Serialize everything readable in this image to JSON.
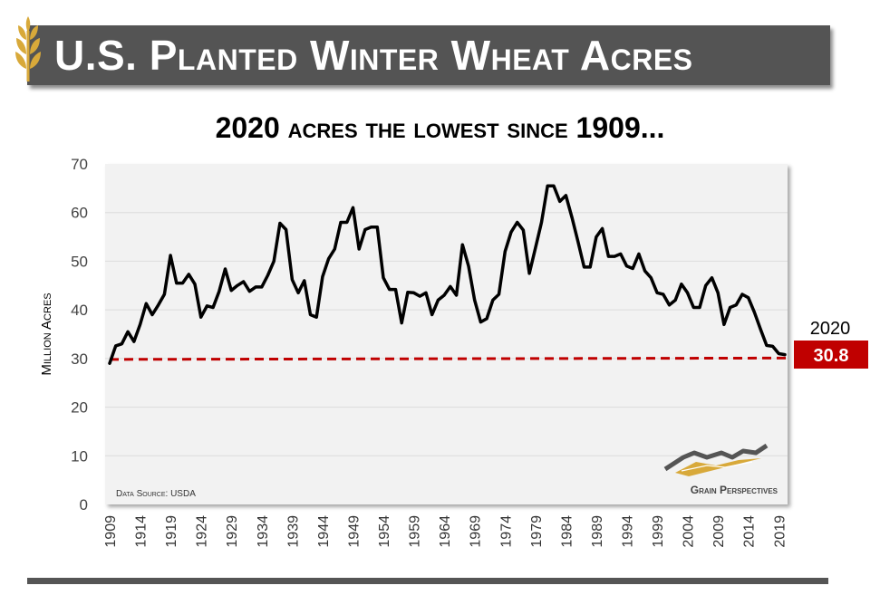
{
  "header": {
    "title": "U.S. Planted Winter Wheat Acres",
    "subtitle": "2020 acres the lowest since 1909..."
  },
  "colors": {
    "title_bg": "#545454",
    "plot_bg": "#f2f2f2",
    "line": "#000000",
    "reference": "#c00000",
    "callout_bg": "#c00000",
    "wheat_icon": "#d8a93a"
  },
  "chart_data": {
    "type": "line",
    "title": "2020 acres the lowest since 1909...",
    "xlabel": "",
    "ylabel": "Million Acres",
    "ylim": [
      0,
      70
    ],
    "yticks": [
      0,
      10,
      20,
      30,
      40,
      50,
      60,
      70
    ],
    "xlim": [
      1909,
      2020
    ],
    "xtick_labels": [
      "1909",
      "1914",
      "1919",
      "1924",
      "1929",
      "1934",
      "1939",
      "1944",
      "1949",
      "1954",
      "1959",
      "1964",
      "1969",
      "1974",
      "1979",
      "1984",
      "1989",
      "1994",
      "1999",
      "2004",
      "2009",
      "2014",
      "2019"
    ],
    "series": [
      {
        "name": "Planted Winter Wheat Acres",
        "x": [
          1909,
          1910,
          1911,
          1912,
          1913,
          1914,
          1915,
          1916,
          1917,
          1918,
          1919,
          1920,
          1921,
          1922,
          1923,
          1924,
          1925,
          1926,
          1927,
          1928,
          1929,
          1930,
          1931,
          1932,
          1933,
          1934,
          1935,
          1936,
          1937,
          1938,
          1939,
          1940,
          1941,
          1942,
          1943,
          1944,
          1945,
          1946,
          1947,
          1948,
          1949,
          1950,
          1951,
          1952,
          1953,
          1954,
          1955,
          1956,
          1957,
          1958,
          1959,
          1960,
          1961,
          1962,
          1963,
          1964,
          1965,
          1966,
          1967,
          1968,
          1969,
          1970,
          1971,
          1972,
          1973,
          1974,
          1975,
          1976,
          1977,
          1978,
          1979,
          1980,
          1981,
          1982,
          1983,
          1984,
          1985,
          1986,
          1987,
          1988,
          1989,
          1990,
          1991,
          1992,
          1993,
          1994,
          1995,
          1996,
          1997,
          1998,
          1999,
          2000,
          2001,
          2002,
          2003,
          2004,
          2005,
          2006,
          2007,
          2008,
          2009,
          2010,
          2011,
          2012,
          2013,
          2014,
          2015,
          2016,
          2017,
          2018,
          2019,
          2020
        ],
        "values": [
          29.0,
          32.6,
          33.0,
          35.5,
          33.5,
          37.0,
          41.3,
          39.0,
          41.0,
          43.2,
          51.2,
          45.5,
          45.5,
          47.3,
          45.3,
          38.5,
          40.8,
          40.5,
          43.8,
          48.4,
          44.0,
          45.0,
          45.8,
          43.8,
          44.7,
          44.7,
          47.1,
          50.0,
          57.8,
          56.5,
          46.2,
          43.5,
          46.0,
          39.0,
          38.5,
          46.8,
          50.5,
          52.5,
          58.0,
          58.0,
          61.0,
          52.5,
          56.5,
          57.0,
          57.0,
          46.6,
          44.2,
          44.2,
          37.3,
          43.6,
          43.5,
          42.8,
          43.5,
          39.0,
          42.0,
          43.0,
          44.8,
          43.0,
          53.4,
          49.0,
          42.0,
          37.5,
          38.2,
          42.0,
          43.2,
          52.0,
          56.0,
          58.0,
          56.4,
          47.5,
          52.7,
          58.0,
          65.5,
          65.5,
          62.3,
          63.5,
          59.0,
          54.0,
          48.8,
          48.8,
          55.0,
          56.7,
          51.0,
          51.0,
          51.5,
          49.0,
          48.5,
          51.5,
          48.0,
          46.6,
          43.5,
          43.2,
          41.0,
          42.0,
          45.3,
          43.5,
          40.5,
          40.5,
          45.0,
          46.6,
          43.5,
          37.0,
          40.5,
          41.0,
          43.2,
          42.5,
          39.5,
          36.0,
          32.7,
          32.5,
          31.0,
          30.8
        ]
      }
    ],
    "reference_line": {
      "value": 30,
      "style": "dashed"
    },
    "callout": {
      "year_label": "2020",
      "value_label": "30.8"
    },
    "source": "Data Source: USDA",
    "brand": "Grain Perspectives"
  }
}
